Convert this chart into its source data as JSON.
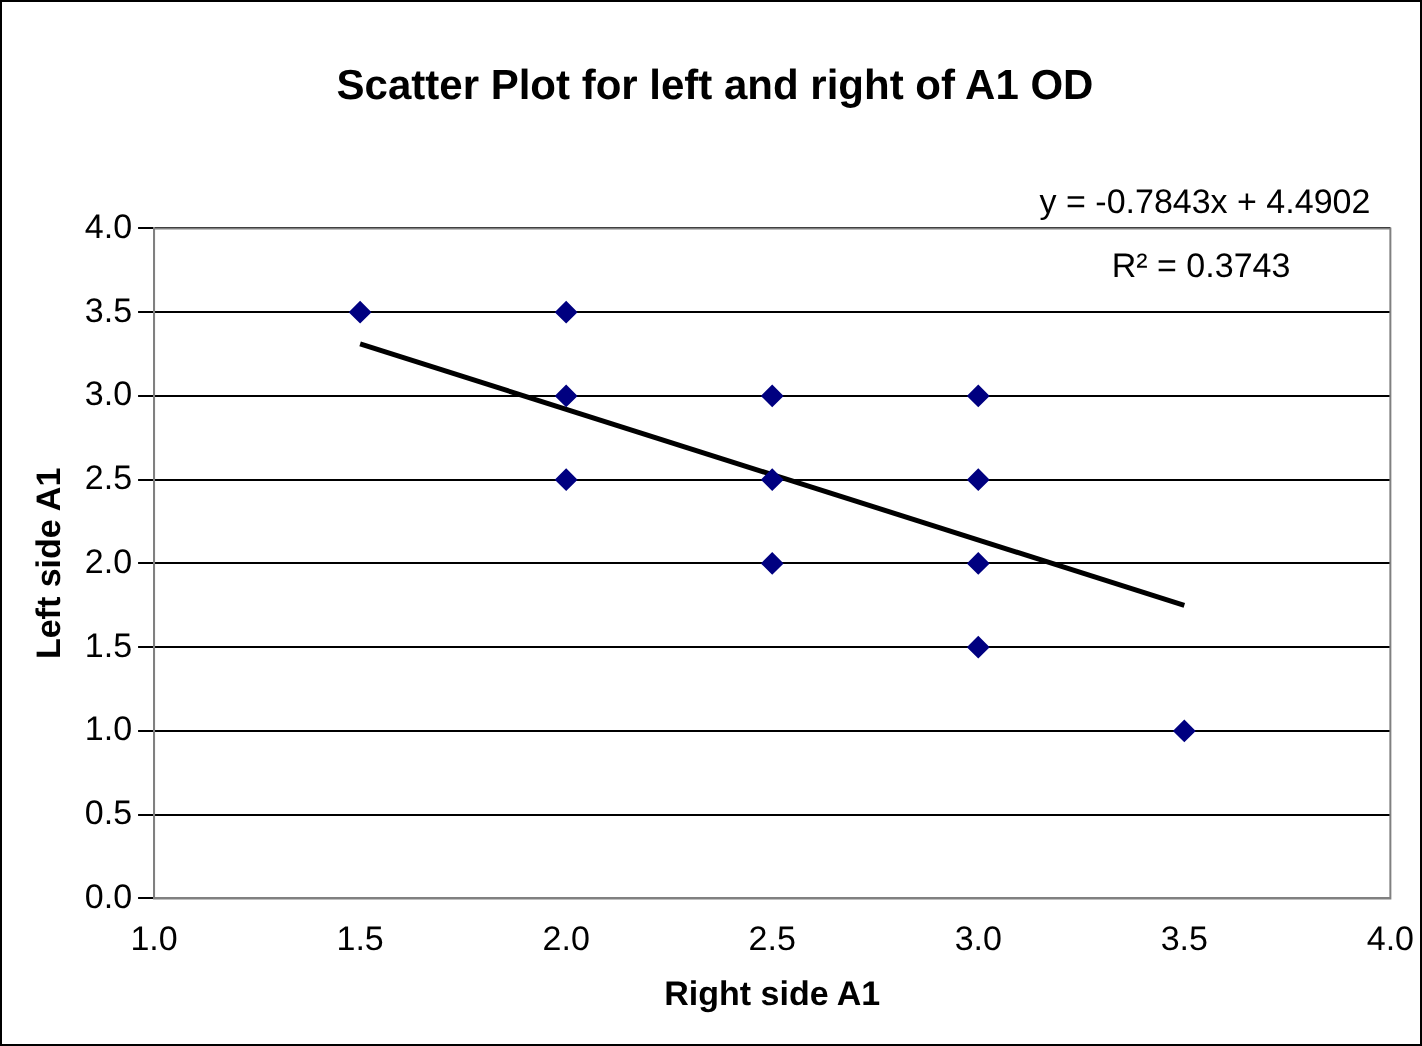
{
  "chart_data": {
    "type": "scatter",
    "title": "Scatter Plot for left and right of A1 OD",
    "xlabel": "Right side A1",
    "ylabel": "Left side A1",
    "series": [
      {
        "type": "scatter",
        "color": "#000080",
        "x": [
          1.5,
          2,
          2,
          2,
          2.5,
          2.5,
          2.5,
          3,
          3,
          3,
          3,
          3.5
        ],
        "values": [
          3.5,
          3.5,
          3,
          2.5,
          3,
          2.5,
          2,
          3,
          2.5,
          2,
          1.5,
          1
        ],
        "marker": "diamond"
      },
      {
        "type": "line",
        "color": "#000000",
        "x": [
          1.5,
          3.5
        ],
        "values": [
          3.31,
          1.75
        ],
        "marker": "none",
        "line_style": "solid"
      }
    ],
    "xlim": [
      1,
      4
    ],
    "xticks": [
      {
        "value": 1,
        "label": "1.0"
      },
      {
        "value": 1.5,
        "label": "1.5"
      },
      {
        "value": 2,
        "label": "2.0"
      },
      {
        "value": 2.5,
        "label": "2.5"
      },
      {
        "value": 3,
        "label": "3.0"
      },
      {
        "value": 3.5,
        "label": "3.5"
      },
      {
        "value": 4,
        "label": "4.0"
      }
    ],
    "ylim": [
      0,
      4
    ],
    "yticks": [
      {
        "value": 0,
        "label": "0.0"
      },
      {
        "value": 0.5,
        "label": "0.5"
      },
      {
        "value": 1,
        "label": "1.0"
      },
      {
        "value": 1.5,
        "label": "1.5"
      },
      {
        "value": 2,
        "label": "2.0"
      },
      {
        "value": 2.5,
        "label": "2.5"
      },
      {
        "value": 3,
        "label": "3.0"
      },
      {
        "value": 3.5,
        "label": "3.5"
      },
      {
        "value": 4,
        "label": "4.0"
      }
    ],
    "grid": "y",
    "legend": false,
    "annotations": [
      "y = -0.7843x + 4.4902",
      "R² = 0.3743"
    ]
  }
}
